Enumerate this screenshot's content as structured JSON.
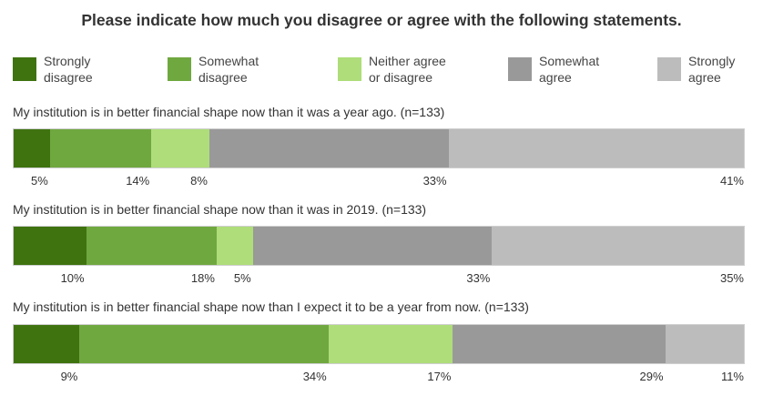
{
  "title": "Please indicate how much you disagree or agree with the following statements.",
  "legend": [
    {
      "label": "Strongly\ndisagree",
      "color": "#3f7310"
    },
    {
      "label": "Somewhat\ndisagree",
      "color": "#70a840"
    },
    {
      "label": "Neither agree\nor disagree",
      "color": "#aedd7a"
    },
    {
      "label": "Somewhat\nagree",
      "color": "#999999"
    },
    {
      "label": "Strongly\nagree",
      "color": "#bcbcbc"
    }
  ],
  "chart_data": {
    "type": "bar",
    "orientation": "horizontal",
    "stacked": true,
    "title": "Please indicate how much you disagree or agree with the following statements.",
    "categories": [
      "My institution is in better financial shape now than it was a year ago. (n=133)",
      "My institution is in better financial shape now than it was in 2019. (n=133)",
      "My institution is in better financial shape now than I expect it to be a year from now. (n=133)"
    ],
    "series": [
      {
        "name": "Strongly disagree",
        "color": "#3f7310",
        "values": [
          5,
          10,
          9
        ]
      },
      {
        "name": "Somewhat disagree",
        "color": "#70a840",
        "values": [
          14,
          18,
          34
        ]
      },
      {
        "name": "Neither agree or disagree",
        "color": "#aedd7a",
        "values": [
          8,
          5,
          17
        ]
      },
      {
        "name": "Somewhat agree",
        "color": "#999999",
        "values": [
          33,
          33,
          29
        ]
      },
      {
        "name": "Strongly agree",
        "color": "#bcbcbc",
        "values": [
          41,
          35,
          11
        ]
      }
    ],
    "value_suffix": "%",
    "legend_position": "top"
  }
}
